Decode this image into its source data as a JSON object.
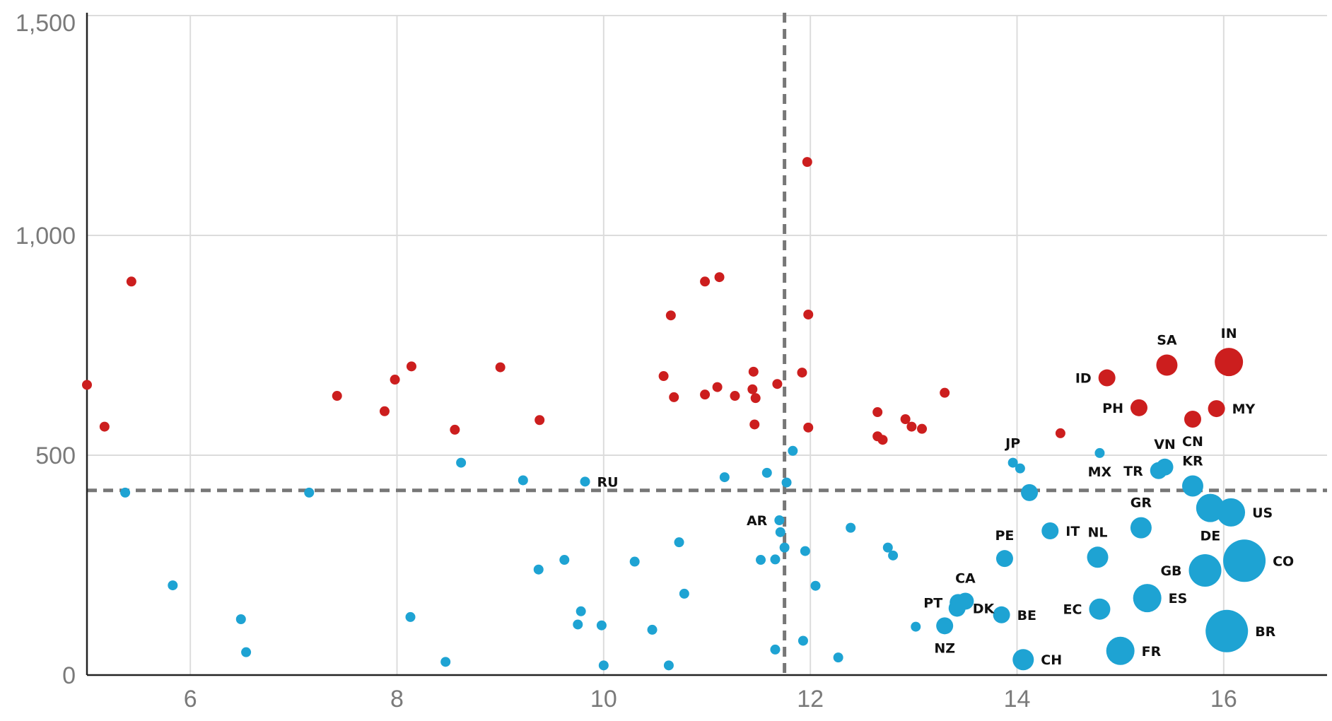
{
  "chart_data": {
    "type": "scatter",
    "title": "",
    "xlabel": "",
    "ylabel": "",
    "xlim": [
      5,
      17
    ],
    "ylim": [
      0,
      1500
    ],
    "x_ticks": [
      6,
      8,
      10,
      12,
      14,
      16
    ],
    "y_ticks": [
      0,
      500,
      1000,
      1500
    ],
    "x_tick_labels": [
      "6",
      "8",
      "10",
      "12",
      "14",
      "16"
    ],
    "y_tick_labels": [
      "0",
      "500",
      "1,000",
      "1,500"
    ],
    "grid": true,
    "reference_lines": {
      "x": 11.75,
      "y": 420
    },
    "colors": {
      "above": "#cc1e1e",
      "below": "#1ea3d3",
      "reference": "#777777",
      "grid": "#dcdcdc"
    },
    "series": [
      {
        "color": "#cc1e1e",
        "points": [
          {
            "x": 5.0,
            "y": 660,
            "s": 1
          },
          {
            "x": 5.17,
            "y": 565,
            "s": 1
          },
          {
            "x": 5.43,
            "y": 895,
            "s": 1
          },
          {
            "x": 7.42,
            "y": 635,
            "s": 1
          },
          {
            "x": 7.88,
            "y": 600,
            "s": 1
          },
          {
            "x": 7.98,
            "y": 672,
            "s": 1
          },
          {
            "x": 8.14,
            "y": 702,
            "s": 1
          },
          {
            "x": 8.56,
            "y": 558,
            "s": 1
          },
          {
            "x": 9.0,
            "y": 700,
            "s": 1
          },
          {
            "x": 9.38,
            "y": 580,
            "s": 1
          },
          {
            "x": 10.58,
            "y": 680,
            "s": 1
          },
          {
            "x": 10.65,
            "y": 818,
            "s": 1
          },
          {
            "x": 10.68,
            "y": 632,
            "s": 1
          },
          {
            "x": 10.98,
            "y": 638,
            "s": 1
          },
          {
            "x": 10.98,
            "y": 895,
            "s": 1
          },
          {
            "x": 11.1,
            "y": 655,
            "s": 1
          },
          {
            "x": 11.12,
            "y": 905,
            "s": 1
          },
          {
            "x": 11.27,
            "y": 635,
            "s": 1
          },
          {
            "x": 11.44,
            "y": 650,
            "s": 1
          },
          {
            "x": 11.45,
            "y": 690,
            "s": 1
          },
          {
            "x": 11.46,
            "y": 570,
            "s": 1
          },
          {
            "x": 11.47,
            "y": 630,
            "s": 1
          },
          {
            "x": 11.68,
            "y": 662,
            "s": 1
          },
          {
            "x": 11.92,
            "y": 688,
            "s": 1
          },
          {
            "x": 11.97,
            "y": 1167,
            "s": 1
          },
          {
            "x": 11.98,
            "y": 820,
            "s": 1
          },
          {
            "x": 11.98,
            "y": 563,
            "s": 1
          },
          {
            "x": 12.65,
            "y": 598,
            "s": 1
          },
          {
            "x": 12.65,
            "y": 543,
            "s": 1
          },
          {
            "x": 12.7,
            "y": 535,
            "s": 1
          },
          {
            "x": 12.92,
            "y": 582,
            "s": 1
          },
          {
            "x": 12.98,
            "y": 565,
            "s": 1
          },
          {
            "x": 13.08,
            "y": 560,
            "s": 1
          },
          {
            "x": 13.3,
            "y": 642,
            "s": 1
          },
          {
            "x": 14.42,
            "y": 550,
            "s": 1
          },
          {
            "x": 14.87,
            "y": 676,
            "s": 2,
            "label": "ID",
            "pos": "left"
          },
          {
            "x": 15.18,
            "y": 608,
            "s": 2,
            "label": "PH",
            "pos": "left"
          },
          {
            "x": 15.45,
            "y": 705,
            "s": 3,
            "label": "SA",
            "pos": "above"
          },
          {
            "x": 15.7,
            "y": 582,
            "s": 2,
            "label": "CN",
            "pos": "below"
          },
          {
            "x": 15.93,
            "y": 606,
            "s": 2,
            "label": "MY",
            "pos": "right"
          },
          {
            "x": 16.05,
            "y": 712,
            "s": 4,
            "label": "IN",
            "pos": "above"
          }
        ]
      },
      {
        "color": "#1ea3d3",
        "points": [
          {
            "x": 5.37,
            "y": 415,
            "s": 1
          },
          {
            "x": 5.83,
            "y": 204,
            "s": 1
          },
          {
            "x": 6.49,
            "y": 127,
            "s": 1
          },
          {
            "x": 6.54,
            "y": 52,
            "s": 1
          },
          {
            "x": 7.15,
            "y": 415,
            "s": 1
          },
          {
            "x": 8.13,
            "y": 132,
            "s": 1
          },
          {
            "x": 8.47,
            "y": 30,
            "s": 1
          },
          {
            "x": 8.62,
            "y": 483,
            "s": 1
          },
          {
            "x": 9.22,
            "y": 443,
            "s": 1
          },
          {
            "x": 9.37,
            "y": 240,
            "s": 1
          },
          {
            "x": 9.62,
            "y": 262,
            "s": 1
          },
          {
            "x": 9.75,
            "y": 115,
            "s": 1
          },
          {
            "x": 9.78,
            "y": 145,
            "s": 1
          },
          {
            "x": 9.82,
            "y": 440,
            "s": 1,
            "label": "RU",
            "pos": "right"
          },
          {
            "x": 9.98,
            "y": 113,
            "s": 1
          },
          {
            "x": 10.0,
            "y": 22,
            "s": 1
          },
          {
            "x": 10.3,
            "y": 258,
            "s": 1
          },
          {
            "x": 10.47,
            "y": 103,
            "s": 1
          },
          {
            "x": 10.63,
            "y": 22,
            "s": 1
          },
          {
            "x": 10.73,
            "y": 302,
            "s": 1
          },
          {
            "x": 10.78,
            "y": 185,
            "s": 1
          },
          {
            "x": 11.17,
            "y": 450,
            "s": 1
          },
          {
            "x": 11.52,
            "y": 262,
            "s": 1
          },
          {
            "x": 11.58,
            "y": 460,
            "s": 1
          },
          {
            "x": 11.66,
            "y": 263,
            "s": 1
          },
          {
            "x": 11.66,
            "y": 58,
            "s": 1
          },
          {
            "x": 11.7,
            "y": 352,
            "s": 1,
            "label": "AR",
            "pos": "left"
          },
          {
            "x": 11.71,
            "y": 325,
            "s": 1
          },
          {
            "x": 11.75,
            "y": 290,
            "s": 1
          },
          {
            "x": 11.77,
            "y": 438,
            "s": 1
          },
          {
            "x": 11.83,
            "y": 510,
            "s": 1
          },
          {
            "x": 11.93,
            "y": 78,
            "s": 1
          },
          {
            "x": 11.95,
            "y": 282,
            "s": 1
          },
          {
            "x": 12.05,
            "y": 203,
            "s": 1
          },
          {
            "x": 12.27,
            "y": 40,
            "s": 1
          },
          {
            "x": 12.39,
            "y": 335,
            "s": 1
          },
          {
            "x": 12.75,
            "y": 290,
            "s": 1
          },
          {
            "x": 12.8,
            "y": 272,
            "s": 1
          },
          {
            "x": 13.02,
            "y": 110,
            "s": 1
          },
          {
            "x": 13.3,
            "y": 112,
            "s": 2,
            "label": "NZ",
            "pos": "below"
          },
          {
            "x": 13.42,
            "y": 152,
            "s": 2,
            "label": "DK",
            "pos": "right"
          },
          {
            "x": 13.43,
            "y": 165,
            "s": 2,
            "label": "PT",
            "pos": "left"
          },
          {
            "x": 13.5,
            "y": 168,
            "s": 2,
            "label": "CA",
            "pos": "above"
          },
          {
            "x": 13.85,
            "y": 137,
            "s": 2,
            "label": "BE",
            "pos": "right"
          },
          {
            "x": 13.88,
            "y": 265,
            "s": 2,
            "label": "PE",
            "pos": "above"
          },
          {
            "x": 13.96,
            "y": 483,
            "s": 1,
            "label": "JP",
            "pos": "above"
          },
          {
            "x": 14.03,
            "y": 470,
            "s": 1
          },
          {
            "x": 14.06,
            "y": 35,
            "s": 3,
            "label": "CH",
            "pos": "right"
          },
          {
            "x": 14.12,
            "y": 415,
            "s": 2
          },
          {
            "x": 14.32,
            "y": 328,
            "s": 2,
            "label": "IT",
            "pos": "right"
          },
          {
            "x": 14.78,
            "y": 268,
            "s": 3,
            "label": "NL",
            "pos": "above"
          },
          {
            "x": 14.8,
            "y": 150,
            "s": 3,
            "label": "EC",
            "pos": "left"
          },
          {
            "x": 14.8,
            "y": 505,
            "s": 1,
            "label": "MX",
            "pos": "below"
          },
          {
            "x": 15.0,
            "y": 55,
            "s": 4,
            "label": "FR",
            "pos": "right"
          },
          {
            "x": 15.2,
            "y": 335,
            "s": 3,
            "label": "GR",
            "pos": "above"
          },
          {
            "x": 15.26,
            "y": 175,
            "s": 4,
            "label": "ES",
            "pos": "right"
          },
          {
            "x": 15.37,
            "y": 465,
            "s": 2,
            "label": "TR",
            "pos": "left"
          },
          {
            "x": 15.43,
            "y": 473,
            "s": 2,
            "label": "VN",
            "pos": "above"
          },
          {
            "x": 15.7,
            "y": 430,
            "s": 3,
            "label": "KR",
            "pos": "above"
          },
          {
            "x": 15.82,
            "y": 238,
            "s": 5,
            "label": "GB",
            "pos": "left"
          },
          {
            "x": 15.87,
            "y": 380,
            "s": 4,
            "label": "DE",
            "pos": "below"
          },
          {
            "x": 16.03,
            "y": 100,
            "s": 6,
            "label": "BR",
            "pos": "right"
          },
          {
            "x": 16.07,
            "y": 370,
            "s": 4,
            "label": "US",
            "pos": "right"
          },
          {
            "x": 16.2,
            "y": 260,
            "s": 6,
            "label": "CO",
            "pos": "right"
          }
        ]
      }
    ]
  }
}
